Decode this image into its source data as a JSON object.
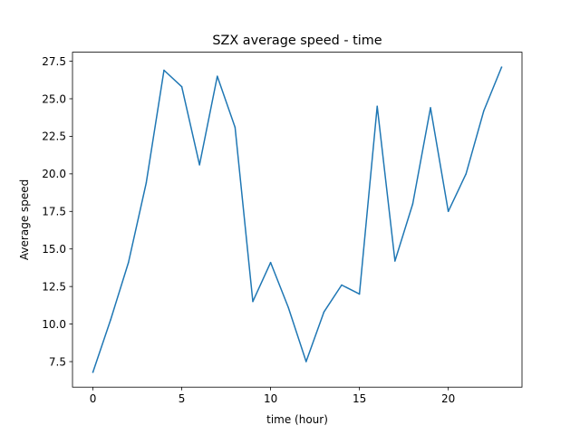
{
  "chart_data": {
    "type": "line",
    "title": "SZX average speed - time",
    "xlabel": "time (hour)",
    "ylabel": "Average speed",
    "xlim": [
      -1.15,
      24.15
    ],
    "ylim": [
      5.8,
      28.1
    ],
    "x_ticks": [
      0,
      5,
      10,
      15,
      20
    ],
    "x_tick_labels": [
      "0",
      "5",
      "10",
      "15",
      "20"
    ],
    "y_ticks": [
      7.5,
      10.0,
      12.5,
      15.0,
      17.5,
      20.0,
      22.5,
      25.0,
      27.5
    ],
    "y_tick_labels": [
      "7.5",
      "10.0",
      "12.5",
      "15.0",
      "17.5",
      "20.0",
      "22.5",
      "25.0",
      "27.5"
    ],
    "grid": false,
    "series": [
      {
        "name": "SZX",
        "color": "#1f77b4",
        "x": [
          0,
          1,
          2,
          3,
          4,
          5,
          6,
          7,
          8,
          9,
          10,
          11,
          12,
          13,
          14,
          15,
          16,
          17,
          18,
          19,
          20,
          21,
          22,
          23
        ],
        "values": [
          6.8,
          10.3,
          14.1,
          19.4,
          26.9,
          25.8,
          20.6,
          26.5,
          23.1,
          11.5,
          14.1,
          11.1,
          7.5,
          10.8,
          12.6,
          12.0,
          24.5,
          14.2,
          18.0,
          24.4,
          17.5,
          20.0,
          24.2,
          27.1
        ]
      }
    ]
  }
}
